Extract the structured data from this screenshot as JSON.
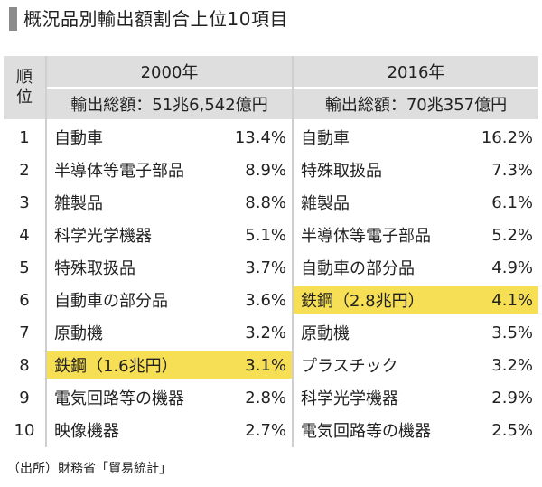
{
  "title": "概況品別輸出額割合上位10項目",
  "source": "（出所）財務省「貿易統計」",
  "header": {
    "rank_chars": [
      "順",
      "位"
    ]
  },
  "chart_data": {
    "type": "table",
    "title": "概況品別輸出額割合上位10項目",
    "ranks": [
      "1",
      "2",
      "3",
      "4",
      "5",
      "6",
      "7",
      "8",
      "9",
      "10"
    ],
    "columns": [
      {
        "year": "2000年",
        "total": "輸出総額：51兆6,542億円",
        "items": [
          {
            "name": "自動車",
            "share": "13.4%"
          },
          {
            "name": "半導体等電子部品",
            "share": "8.9%"
          },
          {
            "name": "雑製品",
            "share": "8.8%"
          },
          {
            "name": "科学光学機器",
            "share": "5.1%"
          },
          {
            "name": "特殊取扱品",
            "share": "3.7%"
          },
          {
            "name": "自動車の部分品",
            "share": "3.6%"
          },
          {
            "name": "原動機",
            "share": "3.2%"
          },
          {
            "name": "鉄鋼（1.6兆円）",
            "share": "3.1%",
            "highlight": true
          },
          {
            "name": "電気回路等の機器",
            "share": "2.8%"
          },
          {
            "name": "映像機器",
            "share": "2.7%"
          }
        ]
      },
      {
        "year": "2016年",
        "total": "輸出総額：70兆357億円",
        "items": [
          {
            "name": "自動車",
            "share": "16.2%"
          },
          {
            "name": "特殊取扱品",
            "share": "7.3%"
          },
          {
            "name": "雑製品",
            "share": "6.1%"
          },
          {
            "name": "半導体等電子部品",
            "share": "5.2%"
          },
          {
            "name": "自動車の部分品",
            "share": "4.9%"
          },
          {
            "name": "鉄鋼（2.8兆円）",
            "share": "4.1%",
            "highlight": true
          },
          {
            "name": "原動機",
            "share": "3.5%"
          },
          {
            "name": "プラスチック",
            "share": "3.2%"
          },
          {
            "name": "科学光学機器",
            "share": "2.9%"
          },
          {
            "name": "電気回路等の機器",
            "share": "2.5%"
          }
        ]
      }
    ],
    "colors": {
      "highlight": "#f7df55",
      "header_bg": "#dedede"
    }
  }
}
